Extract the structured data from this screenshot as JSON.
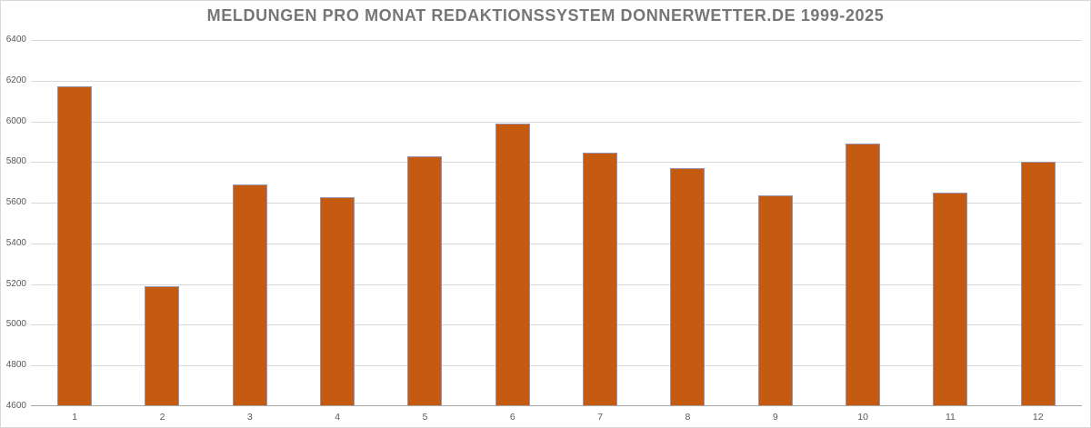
{
  "chart_data": {
    "type": "bar",
    "title": "MELDUNGEN PRO MONAT REDAKTIONSSYSTEM DONNERWETTER.DE 1999-2025",
    "categories": [
      "1",
      "2",
      "3",
      "4",
      "5",
      "6",
      "7",
      "8",
      "9",
      "10",
      "11",
      "12"
    ],
    "values": [
      6170,
      5185,
      5690,
      5625,
      5825,
      5990,
      5845,
      5770,
      5635,
      5890,
      5650,
      5800
    ],
    "xlabel": "",
    "ylabel": "",
    "ylim": [
      4600,
      6400
    ],
    "y_ticks": [
      "6400",
      "6200",
      "6000",
      "5800",
      "5600",
      "5400",
      "5200",
      "5000",
      "4800",
      "4600"
    ],
    "y_tick_step": 200,
    "grid": "horizontal-only",
    "legend": "none",
    "colors": {
      "bar_fill": "#C55A11",
      "bar_border": "#9A93AE",
      "gridline": "#D9D9D9",
      "axis_line": "#A6A6A6",
      "tick_text": "#595959",
      "title_text": "#767676",
      "background": "#FFFFFF",
      "frame_border": "#D9D9D9"
    }
  }
}
